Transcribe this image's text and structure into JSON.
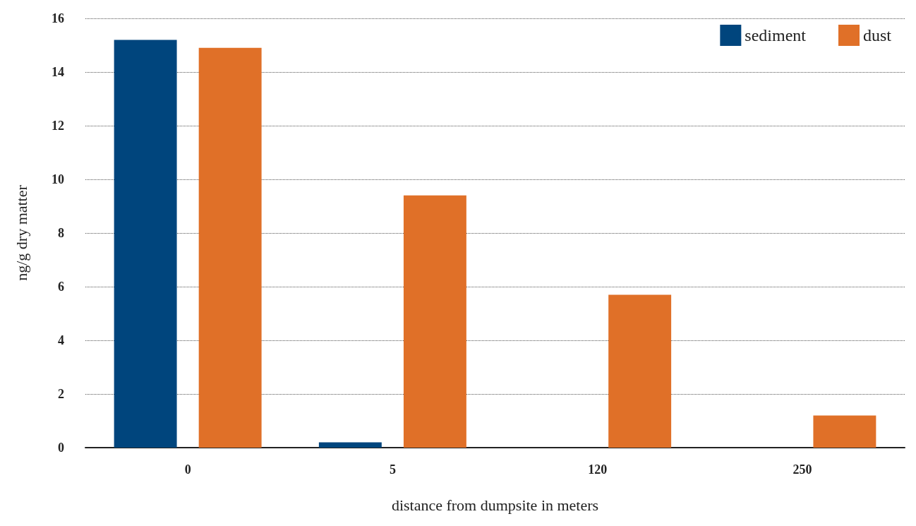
{
  "chart_data": {
    "type": "bar",
    "xlabel": "distance from dumpsite in meters",
    "ylabel": "ng/g dry matter",
    "categories": [
      "0",
      "5",
      "120",
      "250"
    ],
    "series": [
      {
        "name": "sediment",
        "color": "#00457d",
        "values": [
          15.2,
          0.2,
          null,
          null
        ]
      },
      {
        "name": "dust",
        "color": "#e07028",
        "values": [
          14.9,
          9.4,
          5.7,
          1.2
        ]
      }
    ],
    "ylim": [
      0,
      16
    ],
    "yticks": [
      0,
      2,
      4,
      6,
      8,
      10,
      12,
      14,
      16
    ],
    "grid": "y",
    "legend": "top right"
  }
}
